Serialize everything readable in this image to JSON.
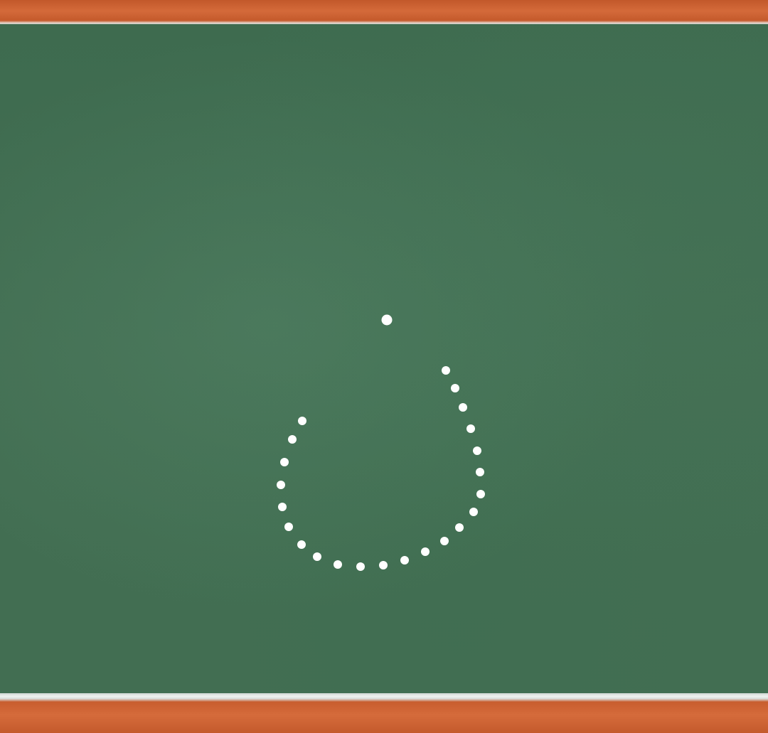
{
  "board": {
    "surface_color": "#3f6b4f",
    "frame_color": "#c85d2e",
    "chalk_color": "#ffffff"
  },
  "tracing": {
    "description_icon": "dotted-letter-tracing"
  }
}
